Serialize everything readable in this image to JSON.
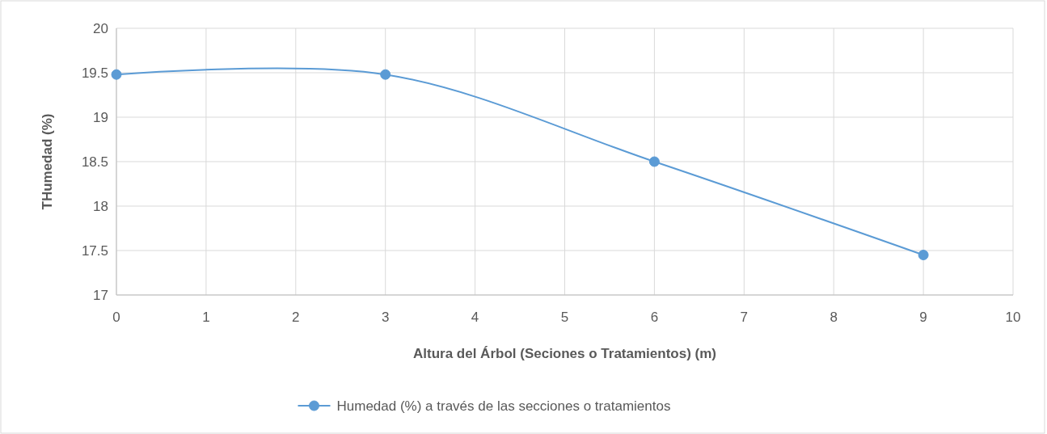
{
  "chart_data": {
    "type": "line",
    "xlabel": "Altura del Árbol (Seciones o Tratamientos) (m)",
    "ylabel": "THumedad (%)",
    "x": [
      0,
      3,
      6,
      9
    ],
    "series": [
      {
        "name": "Humedad (%) a través de las secciones o tratamientos",
        "color": "#5b9bd5",
        "values": [
          19.48,
          19.48,
          18.5,
          17.45
        ]
      }
    ],
    "xlim": [
      0,
      10
    ],
    "xticks": [
      0,
      1,
      2,
      3,
      4,
      5,
      6,
      7,
      8,
      9,
      10
    ],
    "ylim": [
      17,
      20
    ],
    "yticks": [
      17,
      17.5,
      18,
      18.5,
      19,
      19.5,
      20
    ],
    "grid": true,
    "legend": "bottom",
    "marker": "circle",
    "line_style": "solid"
  }
}
